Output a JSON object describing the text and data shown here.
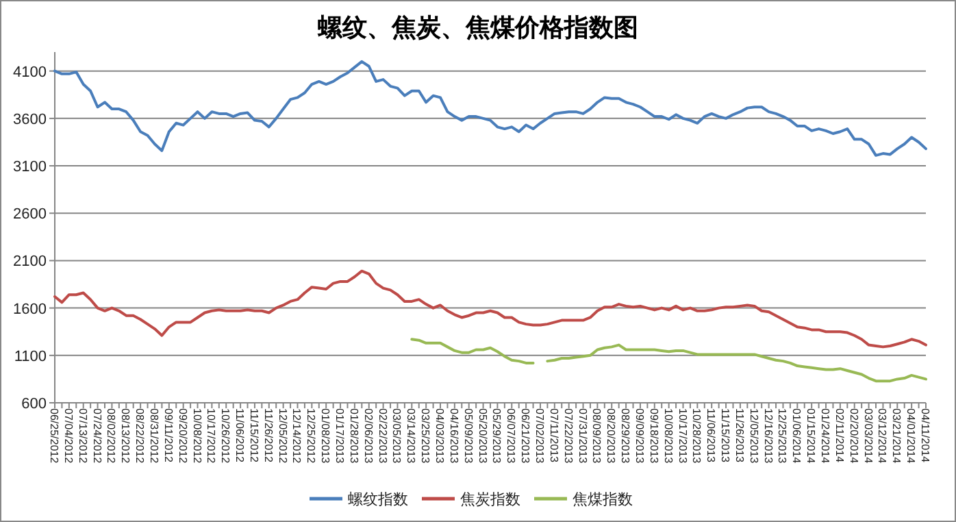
{
  "chart_data": {
    "type": "line",
    "title": "螺纹、焦炭、焦煤价格指数图",
    "categories": [
      "06/25/2012",
      null,
      "07/04/2012",
      null,
      "07/13/2012",
      null,
      "07/24/2012",
      null,
      "08/02/2012",
      null,
      "08/13/2012",
      null,
      "08/22/2012",
      null,
      "08/31/2012",
      null,
      "09/11/2012",
      null,
      "09/20/2012",
      null,
      "10/08/2012",
      null,
      "10/17/2012",
      null,
      "10/26/2012",
      null,
      "11/06/2012",
      null,
      "11/15/2012",
      null,
      "11/26/2012",
      null,
      "12/05/2012",
      null,
      "12/14/2012",
      null,
      "12/25/2012",
      null,
      "01/08/2013",
      null,
      "01/17/2013",
      null,
      "01/28/2013",
      null,
      "02/06/2013",
      null,
      "02/22/2013",
      null,
      "03/05/2013",
      null,
      "03/14/2013",
      null,
      "03/25/2013",
      null,
      "04/03/2013",
      null,
      "04/16/2013",
      null,
      "05/09/2013",
      null,
      "05/20/2013",
      null,
      "05/29/2013",
      null,
      "06/07/2013",
      null,
      "06/21/2013",
      null,
      "07/02/2013",
      null,
      "07/11/2013",
      null,
      "07/22/2013",
      null,
      "07/31/2013",
      null,
      "08/09/2013",
      null,
      "08/20/2013",
      null,
      "08/29/2013",
      null,
      "09/09/2013",
      null,
      "09/18/2013",
      null,
      "10/08/2013",
      null,
      "10/17/2013",
      null,
      "10/28/2013",
      null,
      "11/06/2013",
      null,
      "11/15/2013",
      null,
      "11/26/2013",
      null,
      "12/05/2013",
      null,
      "12/16/2013",
      null,
      "12/25/2013",
      null,
      "01/06/2014",
      null,
      "01/15/2014",
      null,
      "01/24/2014",
      null,
      "02/11/2014",
      null,
      "02/20/2014",
      null,
      "03/03/2014",
      null,
      "03/12/2014",
      null,
      "03/21/2014",
      null,
      "04/01/2014",
      null,
      "04/11/2014"
    ],
    "series": [
      {
        "name": "螺纹指数",
        "color": "#4a7ebb",
        "values": [
          4100,
          4070,
          4070,
          4090,
          3960,
          3890,
          3720,
          3770,
          3700,
          3700,
          3670,
          3580,
          3460,
          3420,
          3330,
          3260,
          3460,
          3550,
          3530,
          3600,
          3670,
          3600,
          3670,
          3650,
          3650,
          3620,
          3650,
          3660,
          3580,
          3570,
          3510,
          3600,
          3700,
          3800,
          3820,
          3870,
          3960,
          3990,
          3960,
          3990,
          4040,
          4080,
          4140,
          4200,
          4150,
          3990,
          4010,
          3940,
          3920,
          3840,
          3890,
          3890,
          3770,
          3840,
          3820,
          3670,
          3620,
          3580,
          3620,
          3620,
          3600,
          3580,
          3510,
          3490,
          3510,
          3460,
          3530,
          3490,
          3550,
          3600,
          3650,
          3660,
          3670,
          3670,
          3650,
          3700,
          3770,
          3820,
          3810,
          3810,
          3770,
          3750,
          3720,
          3670,
          3620,
          3620,
          3590,
          3640,
          3600,
          3580,
          3550,
          3620,
          3650,
          3620,
          3600,
          3640,
          3670,
          3710,
          3720,
          3720,
          3670,
          3650,
          3620,
          3580,
          3520,
          3520,
          3470,
          3490,
          3470,
          3440,
          3460,
          3490,
          3380,
          3380,
          3330,
          3210,
          3230,
          3220,
          3280,
          3330,
          3400,
          3350,
          3280
        ]
      },
      {
        "name": "焦炭指数",
        "color": "#be4b48",
        "values": [
          1720,
          1660,
          1740,
          1740,
          1760,
          1690,
          1600,
          1570,
          1600,
          1570,
          1520,
          1520,
          1480,
          1430,
          1380,
          1310,
          1400,
          1450,
          1450,
          1450,
          1500,
          1550,
          1570,
          1580,
          1570,
          1570,
          1570,
          1580,
          1570,
          1570,
          1550,
          1600,
          1630,
          1670,
          1690,
          1760,
          1820,
          1810,
          1800,
          1860,
          1880,
          1880,
          1930,
          1990,
          1960,
          1860,
          1810,
          1790,
          1740,
          1670,
          1670,
          1690,
          1640,
          1600,
          1630,
          1570,
          1530,
          1500,
          1520,
          1550,
          1550,
          1570,
          1550,
          1500,
          1500,
          1450,
          1430,
          1420,
          1420,
          1430,
          1450,
          1470,
          1470,
          1470,
          1470,
          1500,
          1570,
          1610,
          1610,
          1640,
          1620,
          1610,
          1620,
          1600,
          1580,
          1600,
          1580,
          1620,
          1580,
          1600,
          1570,
          1570,
          1580,
          1600,
          1610,
          1610,
          1620,
          1630,
          1620,
          1570,
          1560,
          1520,
          1480,
          1440,
          1400,
          1390,
          1370,
          1370,
          1350,
          1350,
          1350,
          1340,
          1310,
          1270,
          1210,
          1200,
          1190,
          1200,
          1220,
          1240,
          1270,
          1250,
          1210
        ]
      },
      {
        "name": "焦煤指数",
        "color": "#98b954",
        "values": [
          null,
          null,
          null,
          null,
          null,
          null,
          null,
          null,
          null,
          null,
          null,
          null,
          null,
          null,
          null,
          null,
          null,
          null,
          null,
          null,
          null,
          null,
          null,
          null,
          null,
          null,
          null,
          null,
          null,
          null,
          null,
          null,
          null,
          null,
          null,
          null,
          null,
          null,
          null,
          null,
          null,
          null,
          null,
          null,
          null,
          null,
          null,
          null,
          null,
          null,
          1270,
          1260,
          1230,
          1230,
          1230,
          1190,
          1150,
          1130,
          1130,
          1160,
          1160,
          1180,
          1140,
          1090,
          1050,
          1040,
          1020,
          1020,
          null,
          1040,
          1050,
          1070,
          1070,
          1080,
          1090,
          1100,
          1160,
          1180,
          1190,
          1210,
          1160,
          1160,
          1160,
          1160,
          1160,
          1150,
          1140,
          1150,
          1150,
          1130,
          1110,
          1110,
          1110,
          1110,
          1110,
          1110,
          1110,
          1110,
          1110,
          1090,
          1070,
          1050,
          1040,
          1020,
          990,
          980,
          970,
          960,
          950,
          950,
          960,
          940,
          920,
          900,
          860,
          830,
          830,
          830,
          850,
          860,
          890,
          870,
          850
        ]
      }
    ],
    "ylim": [
      600,
      4300
    ],
    "yticks": [
      600,
      1100,
      1600,
      2100,
      2600,
      3100,
      3600,
      4100
    ],
    "grid": "y",
    "legend": "bottom",
    "line_style": "solid",
    "marker": "none"
  }
}
